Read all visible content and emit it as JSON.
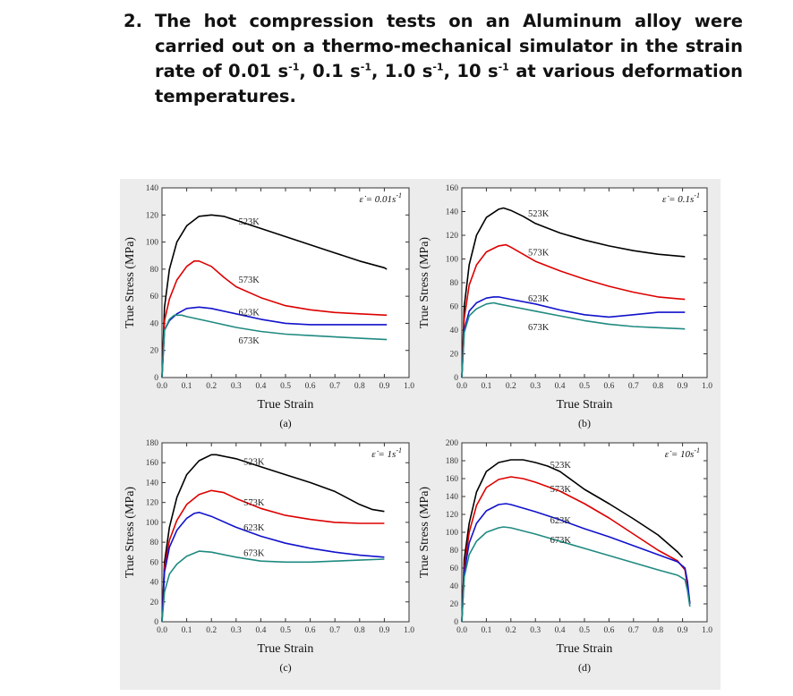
{
  "question": {
    "number": "2.",
    "text_parts": [
      "The hot compression tests on an Aluminum alloy were carried out on a thermo-mechanical simulator in the strain rate of 0.01 s",
      "-1",
      ", 0.1 s",
      "-1",
      ", 1.0 s",
      "-1",
      ", 10 s",
      "-1",
      " at various deformation temperatures."
    ]
  },
  "chart_data": [
    {
      "type": "line",
      "panel_label": "(a)",
      "rate_label": "ε̇ = 0.01s",
      "rate_exp": "-1",
      "xlabel": "True Strain",
      "ylabel": "True Stress (MPa)",
      "xlim": [
        0,
        1.0
      ],
      "ylim": [
        0,
        140
      ],
      "xticks": [
        "0.0",
        "0.1",
        "0.2",
        "0.3",
        "0.4",
        "0.5",
        "0.6",
        "0.7",
        "0.8",
        "0.9",
        "1.0"
      ],
      "yticks": [
        "0",
        "20",
        "40",
        "60",
        "80",
        "100",
        "120",
        "140"
      ],
      "series": [
        {
          "name": "523K",
          "color": "#000000",
          "label_at": [
            0.31,
            113
          ],
          "x": [
            0,
            0.01,
            0.03,
            0.06,
            0.1,
            0.15,
            0.2,
            0.25,
            0.3,
            0.4,
            0.5,
            0.6,
            0.7,
            0.8,
            0.9,
            0.91
          ],
          "y": [
            0,
            52,
            80,
            100,
            112,
            119,
            120,
            119,
            116,
            110,
            104,
            98,
            92,
            86,
            81,
            80
          ]
        },
        {
          "name": "573K",
          "color": "#dd0000",
          "label_at": [
            0.31,
            70
          ],
          "x": [
            0,
            0.01,
            0.03,
            0.06,
            0.1,
            0.13,
            0.15,
            0.2,
            0.25,
            0.3,
            0.4,
            0.5,
            0.6,
            0.7,
            0.8,
            0.91
          ],
          "y": [
            0,
            42,
            58,
            72,
            82,
            86,
            86,
            82,
            74,
            67,
            59,
            53,
            50,
            48,
            47,
            46
          ]
        },
        {
          "name": "623K",
          "color": "#1111cc",
          "label_at": [
            0.31,
            46
          ],
          "x": [
            0,
            0.01,
            0.03,
            0.06,
            0.1,
            0.15,
            0.2,
            0.3,
            0.4,
            0.5,
            0.6,
            0.7,
            0.8,
            0.91
          ],
          "y": [
            0,
            35,
            42,
            47,
            51,
            52,
            51,
            47,
            43,
            40,
            39,
            39,
            39,
            39
          ]
        },
        {
          "name": "673K",
          "color": "#1f8a80",
          "label_at": [
            0.31,
            25
          ],
          "x": [
            0,
            0.01,
            0.03,
            0.05,
            0.08,
            0.1,
            0.15,
            0.2,
            0.3,
            0.4,
            0.5,
            0.6,
            0.7,
            0.8,
            0.91
          ],
          "y": [
            0,
            35,
            43,
            46,
            46,
            45,
            43,
            41,
            37,
            34,
            32,
            31,
            30,
            29,
            28
          ]
        }
      ]
    },
    {
      "type": "line",
      "panel_label": "(b)",
      "rate_label": "ε̇ = 0.1s",
      "rate_exp": "-1",
      "xlabel": "True Strain",
      "ylabel": "True Stress (MPa)",
      "xlim": [
        0,
        1.0
      ],
      "ylim": [
        0,
        160
      ],
      "xticks": [
        "0.0",
        "0.1",
        "0.2",
        "0.3",
        "0.4",
        "0.5",
        "0.6",
        "0.7",
        "0.8",
        "0.9",
        "1.0"
      ],
      "yticks": [
        "0",
        "20",
        "40",
        "60",
        "80",
        "100",
        "120",
        "140",
        "160"
      ],
      "series": [
        {
          "name": "523K",
          "color": "#000000",
          "label_at": [
            0.27,
            136
          ],
          "x": [
            0,
            0.01,
            0.03,
            0.06,
            0.1,
            0.15,
            0.17,
            0.2,
            0.25,
            0.3,
            0.4,
            0.5,
            0.6,
            0.7,
            0.8,
            0.91
          ],
          "y": [
            0,
            60,
            95,
            120,
            135,
            142,
            143,
            141,
            136,
            130,
            122,
            116,
            111,
            107,
            104,
            102
          ]
        },
        {
          "name": "573K",
          "color": "#dd0000",
          "label_at": [
            0.27,
            103
          ],
          "x": [
            0,
            0.01,
            0.03,
            0.06,
            0.1,
            0.15,
            0.18,
            0.2,
            0.25,
            0.3,
            0.4,
            0.5,
            0.6,
            0.7,
            0.8,
            0.91
          ],
          "y": [
            0,
            50,
            78,
            95,
            106,
            111,
            112,
            110,
            104,
            98,
            90,
            83,
            77,
            72,
            68,
            66
          ]
        },
        {
          "name": "623K",
          "color": "#1111cc",
          "label_at": [
            0.27,
            64
          ],
          "x": [
            0,
            0.01,
            0.03,
            0.06,
            0.1,
            0.13,
            0.15,
            0.2,
            0.3,
            0.4,
            0.5,
            0.6,
            0.7,
            0.8,
            0.91
          ],
          "y": [
            0,
            40,
            56,
            63,
            67,
            68,
            68,
            66,
            62,
            57,
            53,
            51,
            53,
            55,
            55
          ]
        },
        {
          "name": "673K",
          "color": "#1f8a80",
          "label_at": [
            0.27,
            40
          ],
          "x": [
            0,
            0.01,
            0.03,
            0.06,
            0.1,
            0.13,
            0.15,
            0.2,
            0.3,
            0.4,
            0.5,
            0.6,
            0.7,
            0.8,
            0.91
          ],
          "y": [
            0,
            38,
            52,
            58,
            62,
            63,
            62,
            60,
            56,
            52,
            48,
            45,
            43,
            42,
            41
          ]
        }
      ]
    },
    {
      "type": "line",
      "panel_label": "(c)",
      "rate_label": "ε̇ = 1s",
      "rate_exp": "-1",
      "xlabel": "True Strain",
      "ylabel": "True Stress (MPa)",
      "xlim": [
        0,
        1.0
      ],
      "ylim": [
        0,
        180
      ],
      "xticks": [
        "0.0",
        "0.1",
        "0.2",
        "0.3",
        "0.4",
        "0.5",
        "0.6",
        "0.7",
        "0.8",
        "0.9",
        "1.0"
      ],
      "yticks": [
        "0",
        "20",
        "40",
        "60",
        "80",
        "100",
        "120",
        "140",
        "160",
        "180"
      ],
      "series": [
        {
          "name": "523K",
          "color": "#000000",
          "label_at": [
            0.33,
            158
          ],
          "x": [
            0,
            0.01,
            0.03,
            0.06,
            0.1,
            0.15,
            0.2,
            0.22,
            0.3,
            0.4,
            0.5,
            0.6,
            0.7,
            0.8,
            0.85,
            0.9
          ],
          "y": [
            0,
            60,
            95,
            125,
            148,
            162,
            168,
            168,
            164,
            156,
            148,
            140,
            131,
            118,
            113,
            111
          ]
        },
        {
          "name": "573K",
          "color": "#dd0000",
          "label_at": [
            0.33,
            117
          ],
          "x": [
            0,
            0.01,
            0.03,
            0.06,
            0.1,
            0.15,
            0.2,
            0.25,
            0.3,
            0.4,
            0.5,
            0.6,
            0.7,
            0.8,
            0.9
          ],
          "y": [
            0,
            55,
            82,
            102,
            118,
            128,
            132,
            130,
            124,
            114,
            107,
            103,
            100,
            99,
            99
          ]
        },
        {
          "name": "623K",
          "color": "#1111cc",
          "label_at": [
            0.33,
            92
          ],
          "x": [
            0,
            0.01,
            0.03,
            0.06,
            0.1,
            0.13,
            0.15,
            0.2,
            0.3,
            0.4,
            0.5,
            0.6,
            0.7,
            0.8,
            0.9
          ],
          "y": [
            0,
            50,
            75,
            92,
            104,
            109,
            110,
            106,
            95,
            86,
            79,
            74,
            70,
            67,
            65
          ]
        },
        {
          "name": "673K",
          "color": "#1f8a80",
          "label_at": [
            0.33,
            66
          ],
          "x": [
            0,
            0.01,
            0.03,
            0.06,
            0.1,
            0.15,
            0.2,
            0.3,
            0.4,
            0.5,
            0.6,
            0.7,
            0.8,
            0.9
          ],
          "y": [
            0,
            30,
            48,
            58,
            66,
            71,
            70,
            65,
            61,
            60,
            60,
            61,
            62,
            63
          ]
        }
      ]
    },
    {
      "type": "line",
      "panel_label": "(d)",
      "rate_label": "ε̇ = 10s",
      "rate_exp": "-1",
      "xlabel": "True Strain",
      "ylabel": "True Stress (MPa)",
      "xlim": [
        0,
        1.0
      ],
      "ylim": [
        0,
        200
      ],
      "xticks": [
        "0.0",
        "0.1",
        "0.2",
        "0.3",
        "0.4",
        "0.5",
        "0.6",
        "0.7",
        "0.8",
        "0.9",
        "1.0"
      ],
      "yticks": [
        "0",
        "20",
        "40",
        "60",
        "80",
        "100",
        "120",
        "140",
        "160",
        "180",
        "200"
      ],
      "series": [
        {
          "name": "523K",
          "color": "#000000",
          "label_at": [
            0.36,
            172
          ],
          "x": [
            0,
            0.01,
            0.03,
            0.06,
            0.1,
            0.15,
            0.2,
            0.25,
            0.3,
            0.35,
            0.4,
            0.5,
            0.6,
            0.7,
            0.8,
            0.88,
            0.9
          ],
          "y": [
            0,
            70,
            110,
            145,
            168,
            178,
            181,
            181,
            178,
            174,
            168,
            148,
            132,
            115,
            97,
            78,
            72
          ]
        },
        {
          "name": "573K",
          "color": "#dd0000",
          "label_at": [
            0.36,
            145
          ],
          "x": [
            0,
            0.01,
            0.03,
            0.06,
            0.1,
            0.15,
            0.2,
            0.25,
            0.3,
            0.4,
            0.5,
            0.6,
            0.7,
            0.8,
            0.88,
            0.91,
            0.92,
            0.93
          ],
          "y": [
            0,
            60,
            100,
            130,
            150,
            159,
            162,
            160,
            156,
            146,
            132,
            116,
            98,
            80,
            68,
            58,
            40,
            20
          ]
        },
        {
          "name": "623K",
          "color": "#1111cc",
          "label_at": [
            0.36,
            110
          ],
          "x": [
            0,
            0.01,
            0.03,
            0.06,
            0.1,
            0.15,
            0.18,
            0.2,
            0.3,
            0.4,
            0.5,
            0.6,
            0.7,
            0.8,
            0.88,
            0.91,
            0.92,
            0.93
          ],
          "y": [
            0,
            55,
            88,
            110,
            124,
            131,
            132,
            131,
            123,
            114,
            104,
            95,
            85,
            75,
            67,
            60,
            45,
            20
          ]
        },
        {
          "name": "673K",
          "color": "#1f8a80",
          "label_at": [
            0.36,
            88
          ],
          "x": [
            0,
            0.01,
            0.03,
            0.06,
            0.1,
            0.15,
            0.17,
            0.2,
            0.3,
            0.4,
            0.5,
            0.6,
            0.7,
            0.8,
            0.88,
            0.91,
            0.92,
            0.93
          ],
          "y": [
            0,
            50,
            75,
            90,
            100,
            105,
            106,
            105,
            98,
            90,
            82,
            74,
            66,
            58,
            52,
            47,
            35,
            17
          ]
        }
      ]
    }
  ]
}
